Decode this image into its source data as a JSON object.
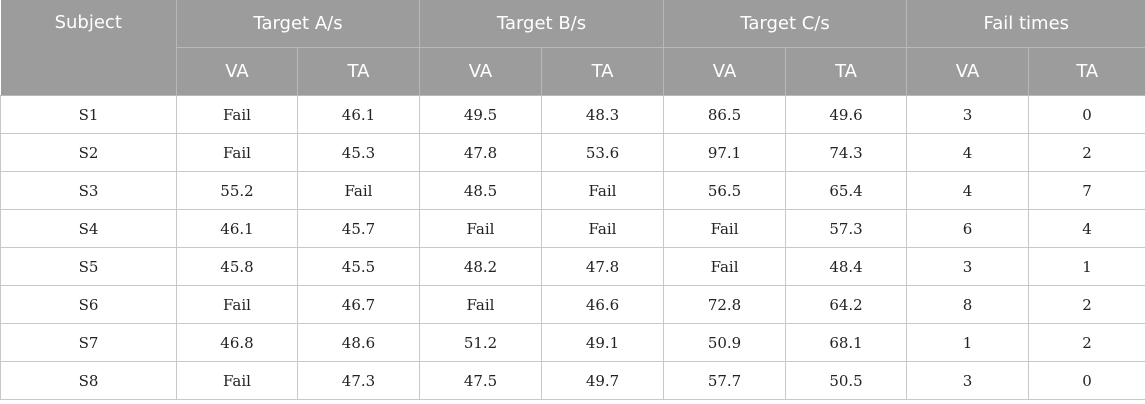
{
  "header": {
    "subject": "Subject",
    "groups": [
      "Target A/s",
      "Target B/s",
      "Target C/s",
      "Fail times"
    ],
    "sub": [
      "VA",
      "TA",
      "VA",
      "TA",
      "VA",
      "TA",
      "VA",
      "TA"
    ]
  },
  "rows": [
    [
      "S1",
      "Fail",
      "46.1",
      "49.5",
      "48.3",
      "86.5",
      "49.6",
      "3",
      "0"
    ],
    [
      "S2",
      "Fail",
      "45.3",
      "47.8",
      "53.6",
      "97.1",
      "74.3",
      "4",
      "2"
    ],
    [
      "S3",
      "55.2",
      "Fail",
      "48.5",
      "Fail",
      "56.5",
      "65.4",
      "4",
      "7"
    ],
    [
      "S4",
      "46.1",
      "45.7",
      "Fail",
      "Fail",
      "Fail",
      "57.3",
      "6",
      "4"
    ],
    [
      "S5",
      "45.8",
      "45.5",
      "48.2",
      "47.8",
      "Fail",
      "48.4",
      "3",
      "1"
    ],
    [
      "S6",
      "Fail",
      "46.7",
      "Fail",
      "46.6",
      "72.8",
      "64.2",
      "8",
      "2"
    ],
    [
      "S7",
      "46.8",
      "48.6",
      "51.2",
      "49.1",
      "50.9",
      "68.1",
      "1",
      "2"
    ],
    [
      "S8",
      "Fail",
      "47.3",
      "47.5",
      "49.7",
      "57.7",
      "50.5",
      "3",
      "0"
    ]
  ]
}
